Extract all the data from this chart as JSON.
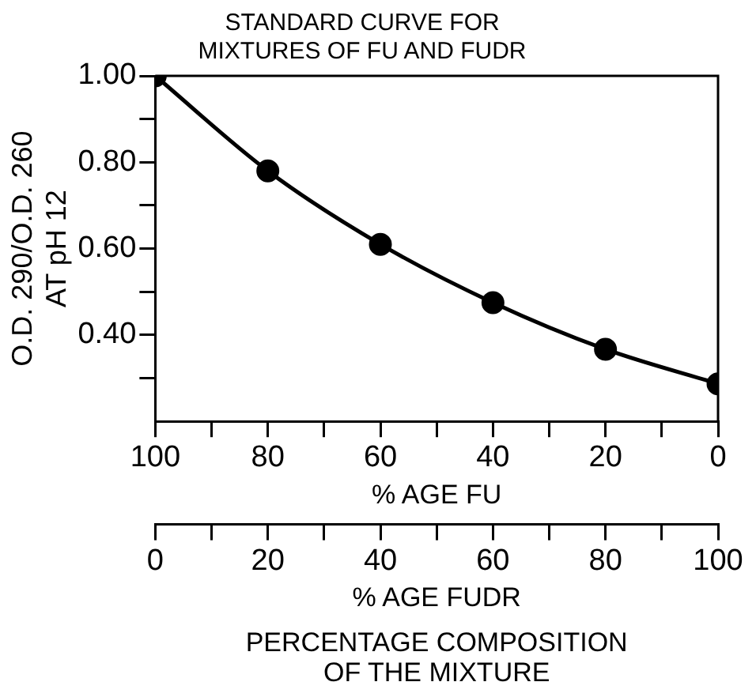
{
  "chart_data": {
    "type": "line",
    "title": "STANDARD CURVE FOR\nMIXTURES OF FU AND FUDR",
    "xlabel": "% AGE FU",
    "ylabel": "O.D. 290/O.D. 260\nAT pH 12",
    "x2label": "% AGE FUDR",
    "annotations": [
      "PERCENTAGE COMPOSITION\nOF THE MIXTURE"
    ],
    "x": [
      100,
      80,
      60,
      40,
      20,
      0
    ],
    "series": [
      {
        "color": "#000000",
        "values": [
          1.0,
          0.78,
          0.61,
          0.475,
          0.367,
          0.287
        ]
      }
    ],
    "xlim": [
      100,
      0
    ],
    "xticks": [
      100,
      {
        "value": 90,
        "label": null
      },
      80,
      {
        "value": 70,
        "label": null
      },
      60,
      {
        "value": 50,
        "label": null
      },
      40,
      {
        "value": 30,
        "label": null
      },
      20,
      {
        "value": 10,
        "label": null
      },
      0
    ],
    "x2lim": [
      0,
      100
    ],
    "x2ticks": [
      0,
      {
        "value": 10,
        "label": null
      },
      20,
      {
        "value": 30,
        "label": null
      },
      40,
      {
        "value": 50,
        "label": null
      },
      60,
      {
        "value": 70,
        "label": null
      },
      80,
      {
        "value": 90,
        "label": null
      },
      100
    ],
    "ylim": [
      0.2,
      1.0
    ],
    "yticks": [
      {
        "value": 0.3,
        "label": null
      },
      {
        "value": 0.4,
        "label": "0.40"
      },
      {
        "value": 0.5,
        "label": null
      },
      {
        "value": 0.6,
        "label": "0.60"
      },
      {
        "value": 0.7,
        "label": null
      },
      {
        "value": 0.8,
        "label": "0.80"
      },
      {
        "value": 0.9,
        "label": null
      },
      {
        "value": 1.0,
        "label": "1.00"
      }
    ],
    "grid": false,
    "legend": false,
    "marker": "circle",
    "line_style": "solid"
  }
}
